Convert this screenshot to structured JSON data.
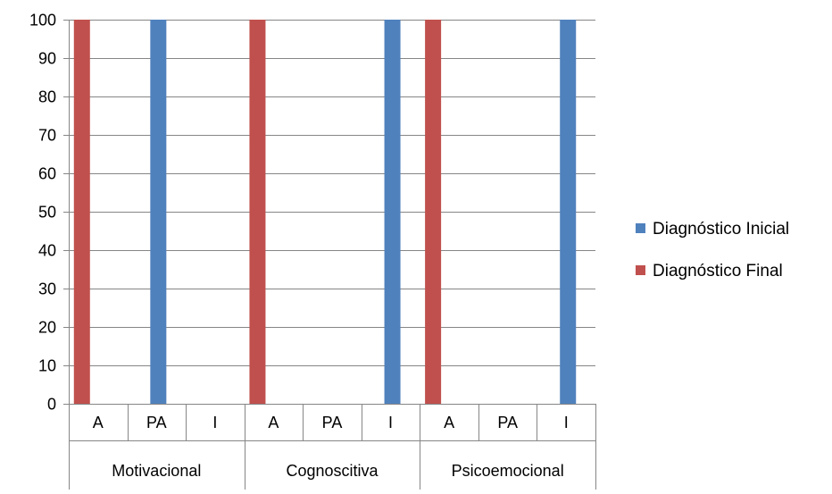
{
  "chart_data": {
    "type": "bar",
    "groups": [
      "Motivacional",
      "Cognoscitiva",
      "Psicoemocional"
    ],
    "subcategories": [
      "A",
      "PA",
      "I"
    ],
    "series": [
      {
        "name": "Diagnóstico Inicial",
        "color": "#4F81BD",
        "values": [
          0,
          100,
          0,
          0,
          0,
          100,
          0,
          0,
          100
        ]
      },
      {
        "name": "Diagnóstico Final",
        "color": "#C0504D",
        "values": [
          100,
          0,
          0,
          100,
          0,
          0,
          100,
          0,
          0
        ]
      }
    ],
    "y_ticks": [
      "0",
      "10",
      "20",
      "30",
      "40",
      "50",
      "60",
      "70",
      "80",
      "90",
      "100"
    ],
    "ylim": [
      0,
      100
    ],
    "grid": "horizontal",
    "legend_position": "right"
  }
}
